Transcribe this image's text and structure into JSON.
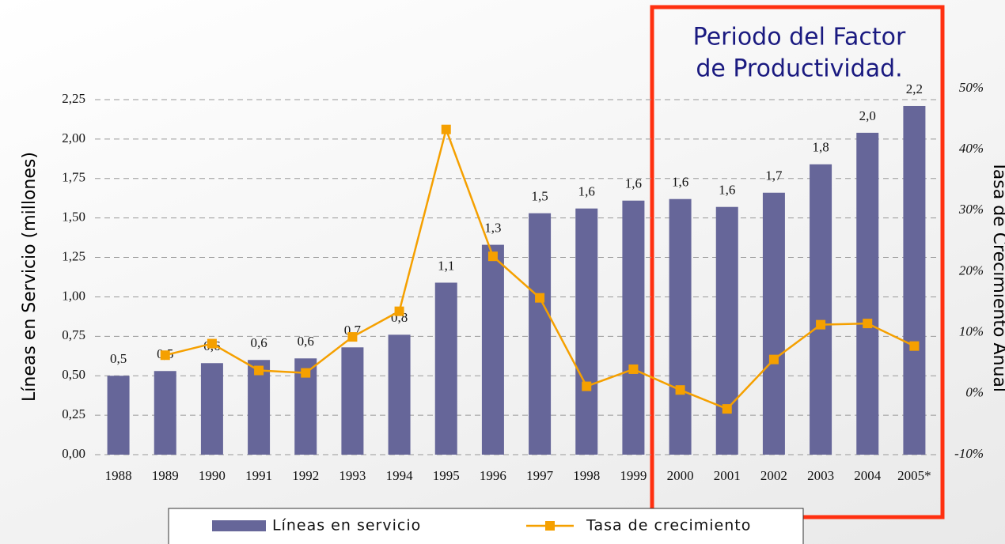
{
  "chart_data": {
    "type": "bar",
    "categories": [
      "1988",
      "1989",
      "1990",
      "1991",
      "1992",
      "1993",
      "1994",
      "1995",
      "1996",
      "1997",
      "1998",
      "1999",
      "2000",
      "2001",
      "2002",
      "2003",
      "2004",
      "2005*"
    ],
    "series": [
      {
        "name": "Líneas en servicio",
        "color": "#666699",
        "values": [
          0.5,
          0.53,
          0.58,
          0.6,
          0.61,
          0.68,
          0.76,
          1.09,
          1.33,
          1.53,
          1.56,
          1.61,
          1.62,
          1.57,
          1.66,
          1.84,
          2.04,
          2.21
        ],
        "value_labels": [
          "0,5",
          "0,5",
          "0,6",
          "0,6",
          "0,6",
          "0,7",
          "0,8",
          "1,1",
          "1,3",
          "1,5",
          "1,6",
          "1,6",
          "1,6",
          "1,6",
          "1,7",
          "1,8",
          "2,0",
          "2,2"
        ]
      },
      {
        "name": "Tasa de crecimiento",
        "color": "#f5a000",
        "type": "line",
        "axis": "y2",
        "values": [
          null,
          6.3,
          8.2,
          3.8,
          3.4,
          9.3,
          13.5,
          43.3,
          22.5,
          15.7,
          1.2,
          4.0,
          0.6,
          -2.5,
          5.6,
          11.3,
          11.5,
          7.8
        ]
      }
    ],
    "ylim": [
      0,
      2.25
    ],
    "yticks": [
      {
        "value": 0,
        "label": "0,00"
      },
      {
        "value": 0.25,
        "label": "0,25"
      },
      {
        "value": 0.5,
        "label": "0,50"
      },
      {
        "value": 0.75,
        "label": "0,75"
      },
      {
        "value": 1,
        "label": "1,00"
      },
      {
        "value": 1.25,
        "label": "1,25"
      },
      {
        "value": 1.5,
        "label": "1,50"
      },
      {
        "value": 1.75,
        "label": "1,75"
      },
      {
        "value": 2,
        "label": "2,00"
      },
      {
        "value": 2.25,
        "label": "2,25"
      }
    ],
    "y2lim": [
      -10,
      50
    ],
    "y2ticks": [
      {
        "value": -10,
        "label": "-10%"
      },
      {
        "value": 0,
        "label": "0%"
      },
      {
        "value": 10,
        "label": "10%"
      },
      {
        "value": 20,
        "label": "20%"
      },
      {
        "value": 30,
        "label": "30%"
      },
      {
        "value": 40,
        "label": "40%"
      },
      {
        "value": 50,
        "label": "50%"
      }
    ],
    "ylabel": "Líneas en Servicio (millones)",
    "y2label": "Tasa de Crecimiento Anual",
    "annotation": [
      "Periodo del Factor",
      "de Productividad."
    ],
    "grid": true,
    "legend": "bottom"
  }
}
